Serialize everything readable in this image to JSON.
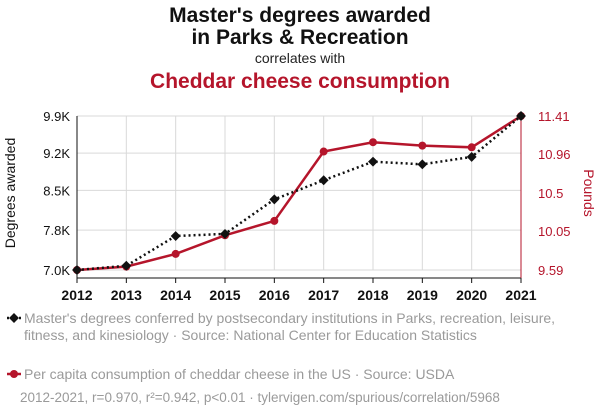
{
  "title": {
    "line1": "Master's degrees awarded",
    "line2": "in Parks & Recreation",
    "correlates": "correlates with",
    "line3": "Cheddar cheese consumption"
  },
  "colors": {
    "series1": "#111111",
    "series2": "#b5152b",
    "muted": "#9a9a9a"
  },
  "chart_data": {
    "type": "line",
    "x": [
      2012,
      2013,
      2014,
      2015,
      2016,
      2017,
      2018,
      2019,
      2020,
      2021
    ],
    "series": [
      {
        "name": "Master's degrees awarded",
        "axis": "left",
        "style": "dotted",
        "marker": "diamond",
        "values": [
          7000,
          7080,
          7640,
          7680,
          8330,
          8690,
          9040,
          8990,
          9130,
          9900
        ]
      },
      {
        "name": "Per capita consumption of cheddar cheese",
        "axis": "right",
        "style": "solid",
        "marker": "circle",
        "values": [
          9.59,
          9.63,
          9.78,
          10.0,
          10.17,
          10.99,
          11.1,
          11.06,
          11.04,
          11.41
        ]
      }
    ],
    "y_left": {
      "label": "Degrees awarded",
      "ticks": [
        "7.0K",
        "7.8K",
        "8.5K",
        "9.2K",
        "9.9K"
      ],
      "tick_values": [
        7000,
        7750,
        8500,
        9200,
        9900
      ],
      "lim": [
        7000,
        9900
      ]
    },
    "y_right": {
      "label": "Pounds",
      "ticks": [
        "9.59",
        "10.05",
        "10.5",
        "10.96",
        "11.41"
      ],
      "tick_values": [
        9.59,
        10.05,
        10.5,
        10.96,
        11.41
      ],
      "lim": [
        9.59,
        11.41
      ]
    },
    "x_ticks": [
      "2012",
      "2013",
      "2014",
      "2015",
      "2016",
      "2017",
      "2018",
      "2019",
      "2020",
      "2021"
    ],
    "grid": true
  },
  "legend": {
    "item1": "Master's degrees conferred by postsecondary institutions in Parks, recreation, leisure, fitness, and kinesiology · Source: National Center for Education Statistics",
    "item2": "Per capita consumption of cheddar cheese in the US · Source: USDA"
  },
  "footer": "2012-2021, r=0.970, r²=0.942, p<0.01 · tylervigen.com/spurious/correlation/5968"
}
